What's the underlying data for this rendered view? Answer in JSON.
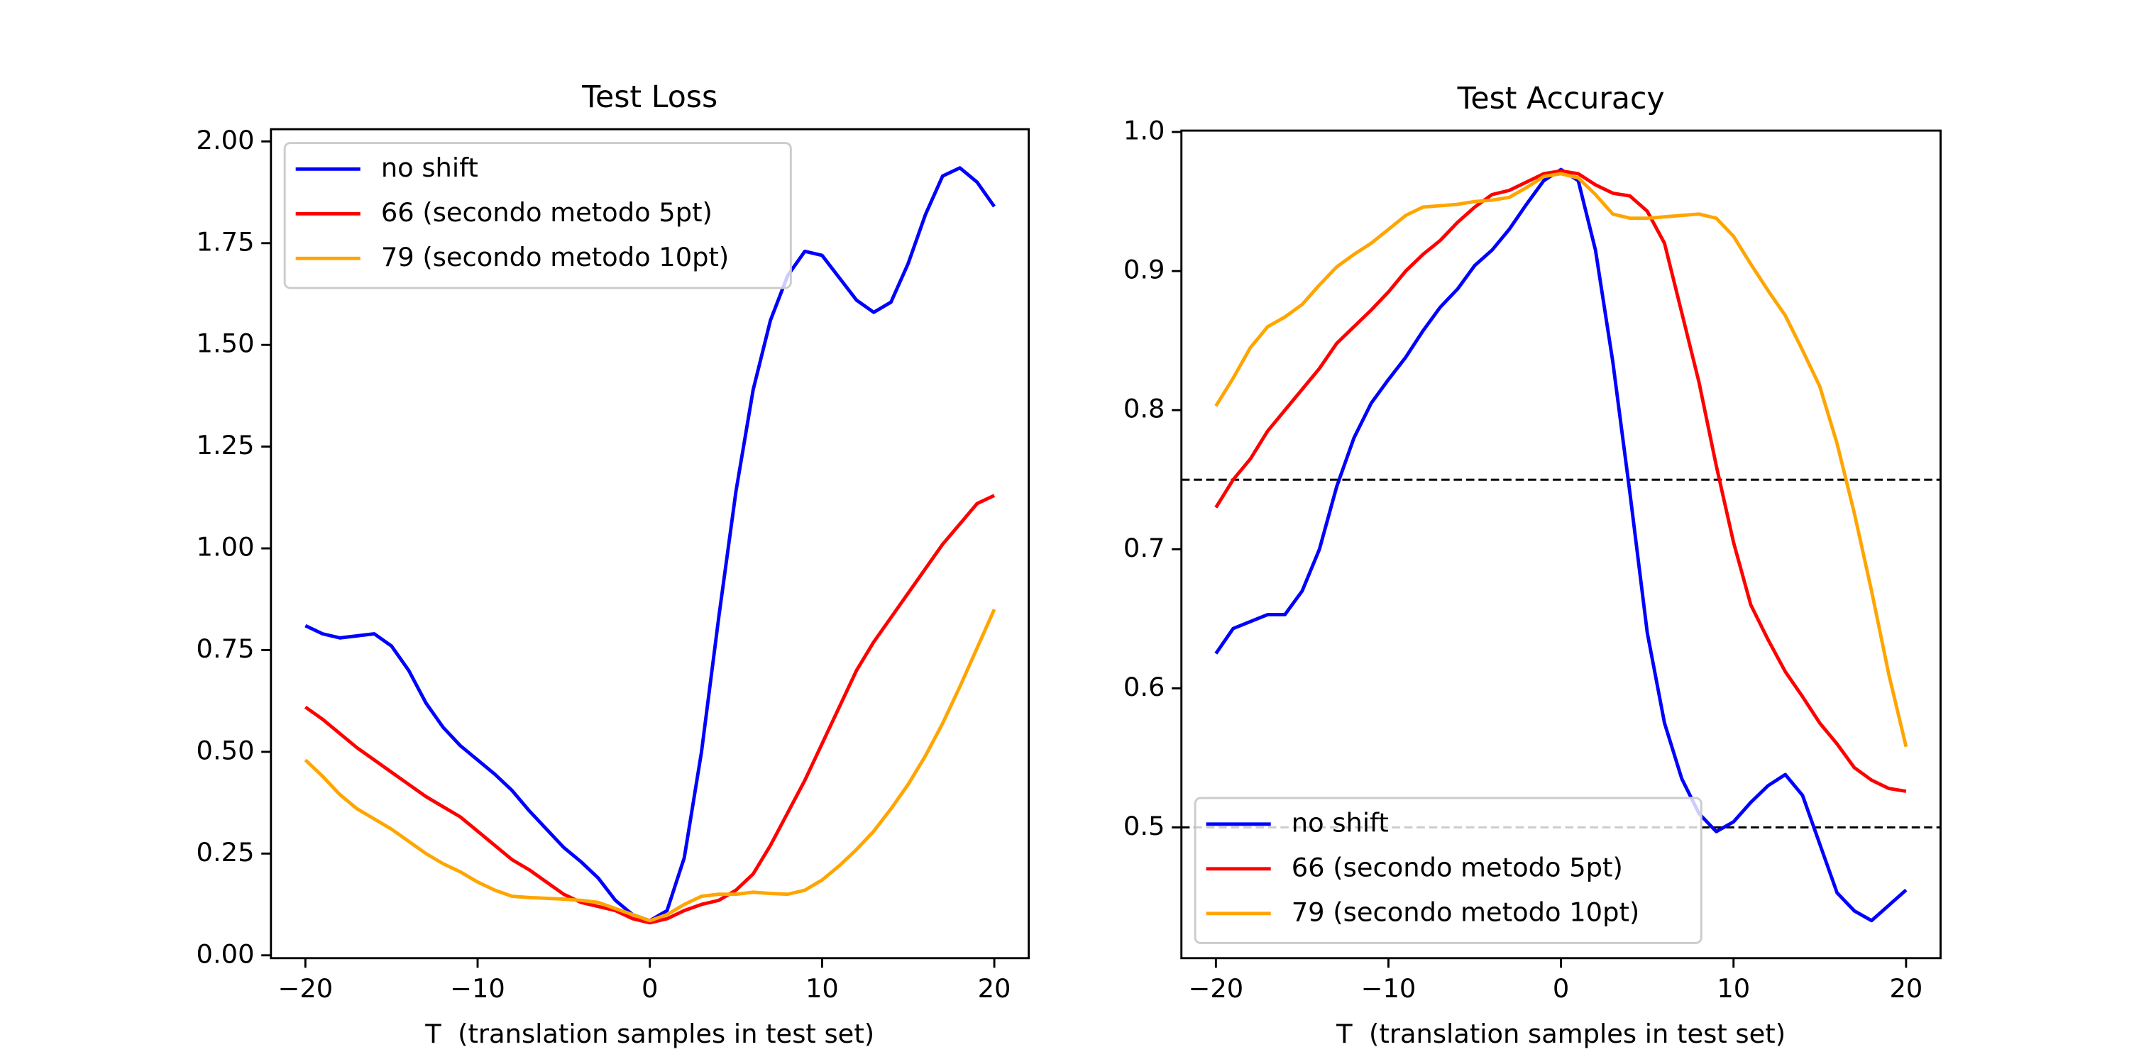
{
  "chart_data": [
    {
      "type": "line",
      "title": "Test Loss",
      "xlabel": "T  (translation samples in test set)",
      "x": [
        -20,
        -19,
        -18,
        -17,
        -16,
        -15,
        -14,
        -13,
        -12,
        -11,
        -10,
        -9,
        -8,
        -7,
        -6,
        -5,
        -4,
        -3,
        -2,
        -1,
        0,
        1,
        2,
        3,
        4,
        5,
        6,
        7,
        8,
        9,
        10,
        11,
        12,
        13,
        14,
        15,
        16,
        17,
        18,
        19,
        20
      ],
      "series": [
        {
          "name": "no shift",
          "color": "#0000ff",
          "values": [
            0.81,
            0.79,
            0.78,
            0.785,
            0.79,
            0.76,
            0.7,
            0.62,
            0.56,
            0.515,
            0.48,
            0.445,
            0.405,
            0.355,
            0.31,
            0.265,
            0.23,
            0.19,
            0.135,
            0.1,
            0.085,
            0.11,
            0.24,
            0.5,
            0.83,
            1.14,
            1.39,
            1.56,
            1.67,
            1.73,
            1.72,
            1.665,
            1.61,
            1.58,
            1.605,
            1.7,
            1.82,
            1.915,
            1.935,
            1.9,
            1.84
          ]
        },
        {
          "name": "66 (secondo metodo 5pt)",
          "color": "#ff0000",
          "values": [
            0.61,
            0.58,
            0.545,
            0.51,
            0.48,
            0.45,
            0.42,
            0.39,
            0.365,
            0.34,
            0.305,
            0.27,
            0.235,
            0.21,
            0.18,
            0.15,
            0.13,
            0.12,
            0.11,
            0.09,
            0.08,
            0.09,
            0.11,
            0.125,
            0.135,
            0.16,
            0.2,
            0.27,
            0.35,
            0.43,
            0.52,
            0.61,
            0.7,
            0.77,
            0.83,
            0.89,
            0.95,
            1.01,
            1.06,
            1.11,
            1.13
          ]
        },
        {
          "name": "79 (secondo metodo 10pt)",
          "color": "#ffa500",
          "values": [
            0.48,
            0.44,
            0.395,
            0.36,
            0.335,
            0.31,
            0.28,
            0.25,
            0.225,
            0.205,
            0.18,
            0.16,
            0.145,
            0.142,
            0.14,
            0.138,
            0.135,
            0.13,
            0.115,
            0.1,
            0.085,
            0.1,
            0.125,
            0.145,
            0.15,
            0.15,
            0.155,
            0.152,
            0.15,
            0.16,
            0.185,
            0.22,
            0.26,
            0.305,
            0.36,
            0.42,
            0.49,
            0.57,
            0.66,
            0.755,
            0.85
          ]
        }
      ],
      "xlim": [
        -22,
        22
      ],
      "xticks": [
        {
          "value": -20,
          "label": "−20"
        },
        {
          "value": -10,
          "label": "−10"
        },
        0,
        10,
        20
      ],
      "ylim": [
        -0.007,
        2.03
      ],
      "yticks": [
        {
          "value": 0,
          "label": "0.00"
        },
        {
          "value": 0.25,
          "label": "0.25"
        },
        {
          "value": 0.5,
          "label": "0.50"
        },
        {
          "value": 0.75,
          "label": "0.75"
        },
        {
          "value": 1,
          "label": "1.00"
        },
        {
          "value": 1.25,
          "label": "1.25"
        },
        {
          "value": 1.5,
          "label": "1.50"
        },
        {
          "value": 1.75,
          "label": "1.75"
        },
        {
          "value": 2,
          "label": "2.00"
        }
      ],
      "legend_loc": "upper left"
    },
    {
      "type": "line",
      "title": "Test Accuracy",
      "xlabel": "T  (translation samples in test set)",
      "x": [
        -20,
        -19,
        -18,
        -17,
        -16,
        -15,
        -14,
        -13,
        -12,
        -11,
        -10,
        -9,
        -8,
        -7,
        -6,
        -5,
        -4,
        -3,
        -2,
        -1,
        0,
        1,
        2,
        3,
        4,
        5,
        6,
        7,
        8,
        9,
        10,
        11,
        12,
        13,
        14,
        15,
        16,
        17,
        18,
        19,
        20
      ],
      "series": [
        {
          "name": "no shift",
          "color": "#0000ff",
          "values": [
            0.625,
            0.643,
            0.648,
            0.653,
            0.653,
            0.67,
            0.7,
            0.745,
            0.78,
            0.805,
            0.822,
            0.838,
            0.857,
            0.874,
            0.887,
            0.904,
            0.915,
            0.93,
            0.948,
            0.965,
            0.973,
            0.965,
            0.915,
            0.835,
            0.74,
            0.64,
            0.575,
            0.535,
            0.51,
            0.497,
            0.504,
            0.518,
            0.53,
            0.538,
            0.523,
            0.488,
            0.453,
            0.44,
            0.433,
            0.444,
            0.455
          ]
        },
        {
          "name": "66 (secondo metodo 5pt)",
          "color": "#ff0000",
          "values": [
            0.73,
            0.75,
            0.765,
            0.785,
            0.8,
            0.815,
            0.83,
            0.848,
            0.86,
            0.872,
            0.885,
            0.9,
            0.912,
            0.922,
            0.935,
            0.946,
            0.955,
            0.958,
            0.964,
            0.97,
            0.972,
            0.97,
            0.962,
            0.956,
            0.954,
            0.943,
            0.92,
            0.87,
            0.82,
            0.76,
            0.705,
            0.66,
            0.635,
            0.612,
            0.594,
            0.575,
            0.56,
            0.543,
            0.534,
            0.528,
            0.526
          ]
        },
        {
          "name": "79 (secondo metodo 10pt)",
          "color": "#ffa500",
          "values": [
            0.803,
            0.823,
            0.845,
            0.86,
            0.867,
            0.876,
            0.89,
            0.903,
            0.912,
            0.92,
            0.93,
            0.94,
            0.946,
            0.947,
            0.948,
            0.95,
            0.951,
            0.953,
            0.96,
            0.968,
            0.97,
            0.967,
            0.955,
            0.941,
            0.938,
            0.938,
            0.939,
            0.94,
            0.941,
            0.938,
            0.925,
            0.905,
            0.886,
            0.868,
            0.843,
            0.817,
            0.776,
            0.726,
            0.67,
            0.61,
            0.558
          ]
        }
      ],
      "hlines": [
        0.75,
        0.5
      ],
      "xlim": [
        -22,
        22
      ],
      "xticks": [
        {
          "value": -20,
          "label": "−20"
        },
        {
          "value": -10,
          "label": "−10"
        },
        0,
        10,
        20
      ],
      "ylim": [
        0.406,
        1.001
      ],
      "yticks": [
        0.5,
        0.6,
        0.7,
        0.8,
        0.9,
        {
          "value": 1,
          "label": "1.0"
        }
      ],
      "legend_loc": "lower left"
    }
  ]
}
